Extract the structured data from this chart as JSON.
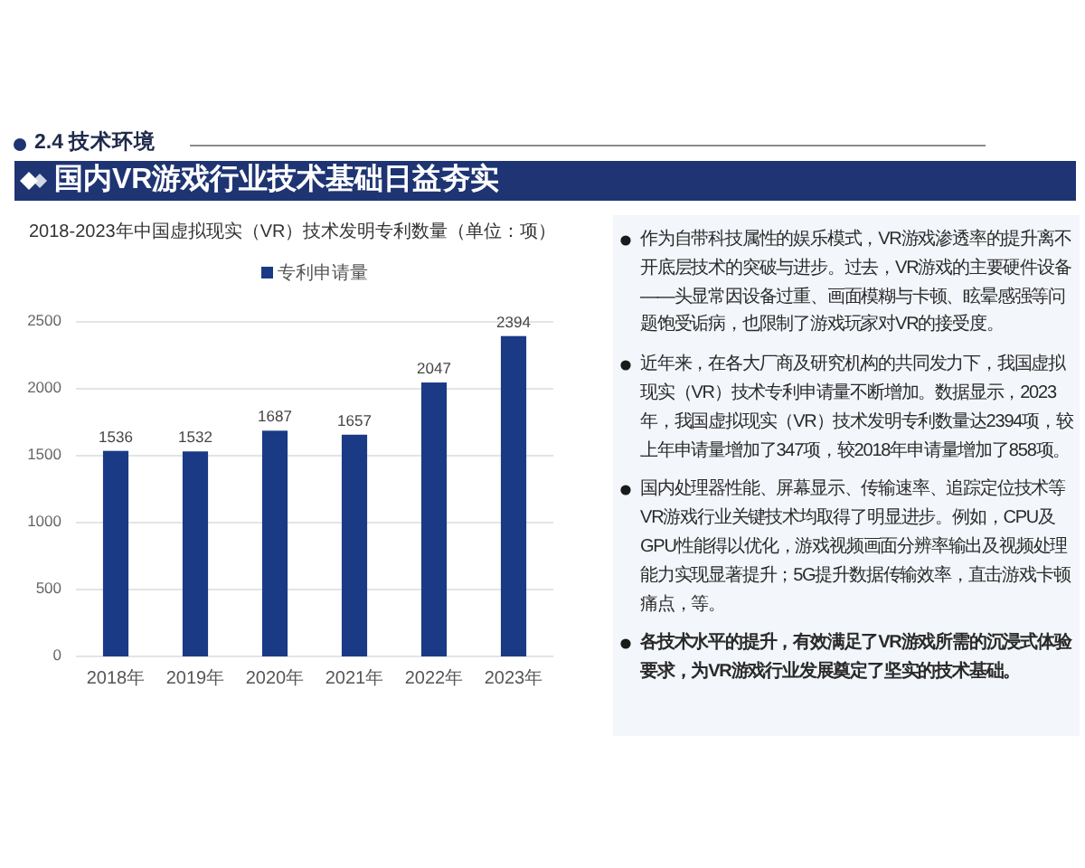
{
  "chart_data": [
    {
      "type": "other",
      "title": "国内VR游戏行业技术基础日益夯实",
      "annotations": [
        "2.4 技术环境"
      ]
    },
    {
      "type": "bar",
      "title": "2018-2023年中国虚拟现实（VR）技术发明专利数量（单位：项）",
      "categories": [
        "2018年",
        "2019年",
        "2020年",
        "2021年",
        "2022年",
        "2023年"
      ],
      "series": [
        {
          "name": "专利申请量",
          "color": "#1a3a86",
          "values": [
            1536,
            1532,
            1687,
            1657,
            2047,
            2394
          ]
        }
      ],
      "ylim": [
        0,
        2500
      ],
      "yticks": [
        0,
        500,
        1000,
        1500,
        2000,
        2500
      ],
      "grid": "y",
      "legend": "top",
      "data_labels": true
    },
    {
      "type": "other",
      "annotations": [
        "作为自带科技属性的娱乐模式，VR游戏渗透率的提升离不开底层技术的突破与进步。过去，VR游戏的主要硬件设备——头显常因设备过重、画面模糊与卡顿、眩晕感强等问题饱受诟病，也限制了游戏玩家对VR的接受度。",
        "近年来，在各大厂商及研究机构的共同发力下，我国虚拟现实（VR）技术专利申请量不断增加。数据显示，2023年，我国虚拟现实（VR）技术发明专利数量达2394项，较上年申请量增加了347项，较2018年申请量增加了858项。",
        "国内处理器性能、屏幕显示、传输速率、追踪定位技术等VR游戏行业关键技术均取得了明显进步。例如，CPU及GPU性能得以优化，游戏视频画面分辨率输出及视频处理能力实现显著提升；5G提升数据传输效率，直击游戏卡顿痛点，等。",
        "各技术水平的提升，有效满足了VR游戏所需的沉浸式体验要求，为VR游戏行业发展奠定了坚实的技术基础。"
      ]
    }
  ]
}
